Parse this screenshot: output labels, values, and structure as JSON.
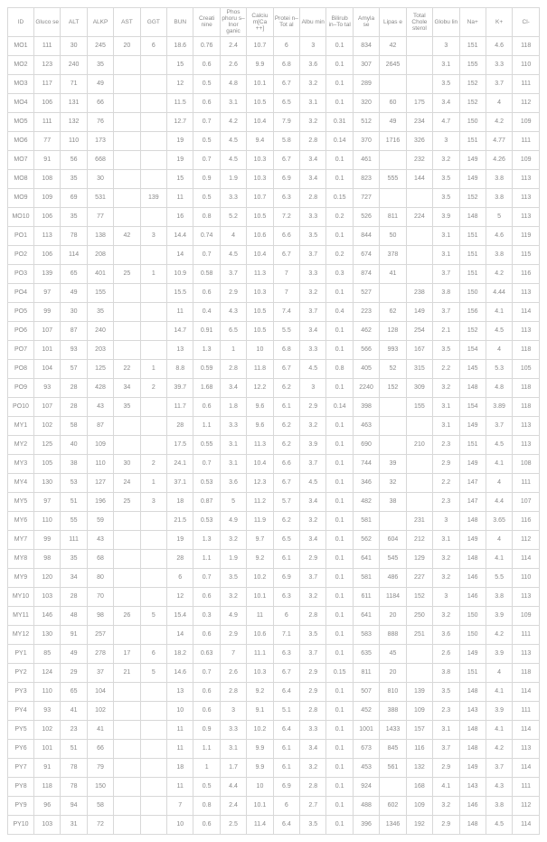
{
  "table": {
    "columns": [
      "ID",
      "Gluco\nse",
      "ALT",
      "ALKP",
      "AST",
      "GGT",
      "BUN",
      "Creati\nnine",
      "Phos\nphoru\ns–Inor\nganic",
      "Calciu\nm[Ca\n++]",
      "Protei\nn–Tot\nal",
      "Albu\nmin",
      "Bilirub\nin–To\ntal",
      "Amyla\nse",
      "Lipas\ne",
      "Total\nChole\nsterol",
      "Globu\nlin",
      "Na+",
      "K+",
      "Cl-"
    ],
    "rows": [
      [
        "MO1",
        "111",
        "30",
        "245",
        "20",
        "6",
        "18.6",
        "0.76",
        "2.4",
        "10.7",
        "6",
        "3",
        "0.1",
        "834",
        "42",
        "",
        "3",
        "151",
        "4.6",
        "118"
      ],
      [
        "MO2",
        "123",
        "240",
        "35",
        "",
        "",
        "15",
        "0.6",
        "2.6",
        "9.9",
        "6.8",
        "3.6",
        "0.1",
        "307",
        "2645",
        "",
        "3.1",
        "155",
        "3.3",
        "110"
      ],
      [
        "MO3",
        "117",
        "71",
        "49",
        "",
        "",
        "12",
        "0.5",
        "4.8",
        "10.1",
        "6.7",
        "3.2",
        "0.1",
        "289",
        "",
        "",
        "3.5",
        "152",
        "3.7",
        "111"
      ],
      [
        "MO4",
        "106",
        "131",
        "66",
        "",
        "",
        "11.5",
        "0.6",
        "3.1",
        "10.5",
        "6.5",
        "3.1",
        "0.1",
        "320",
        "60",
        "175",
        "3.4",
        "152",
        "4",
        "112"
      ],
      [
        "MO5",
        "111",
        "132",
        "76",
        "",
        "",
        "12.7",
        "0.7",
        "4.2",
        "10.4",
        "7.9",
        "3.2",
        "0.31",
        "512",
        "49",
        "234",
        "4.7",
        "150",
        "4.2",
        "109"
      ],
      [
        "MO6",
        "77",
        "110",
        "173",
        "",
        "",
        "19",
        "0.5",
        "4.5",
        "9.4",
        "5.8",
        "2.8",
        "0.14",
        "370",
        "1716",
        "326",
        "3",
        "151",
        "4.77",
        "111"
      ],
      [
        "MO7",
        "91",
        "56",
        "668",
        "",
        "",
        "19",
        "0.7",
        "4.5",
        "10.3",
        "6.7",
        "3.4",
        "0.1",
        "461",
        "",
        "232",
        "3.2",
        "149",
        "4.26",
        "109"
      ],
      [
        "MO8",
        "108",
        "35",
        "30",
        "",
        "",
        "15",
        "0.9",
        "1.9",
        "10.3",
        "6.9",
        "3.4",
        "0.1",
        "823",
        "555",
        "144",
        "3.5",
        "149",
        "3.8",
        "113"
      ],
      [
        "MO9",
        "109",
        "69",
        "531",
        "",
        "139",
        "11",
        "0.5",
        "3.3",
        "10.7",
        "6.3",
        "2.8",
        "0.15",
        "727",
        "",
        "",
        "3.5",
        "152",
        "3.8",
        "113"
      ],
      [
        "MO10",
        "106",
        "35",
        "77",
        "",
        "",
        "16",
        "0.8",
        "5.2",
        "10.5",
        "7.2",
        "3.3",
        "0.2",
        "526",
        "811",
        "224",
        "3.9",
        "148",
        "5",
        "113"
      ],
      [
        "PO1",
        "113",
        "78",
        "138",
        "42",
        "3",
        "14.4",
        "0.74",
        "4",
        "10.6",
        "6.6",
        "3.5",
        "0.1",
        "844",
        "50",
        "",
        "3.1",
        "151",
        "4.6",
        "119"
      ],
      [
        "PO2",
        "106",
        "114",
        "208",
        "",
        "",
        "14",
        "0.7",
        "4.5",
        "10.4",
        "6.7",
        "3.7",
        "0.2",
        "674",
        "378",
        "",
        "3.1",
        "151",
        "3.8",
        "115"
      ],
      [
        "PO3",
        "139",
        "65",
        "401",
        "25",
        "1",
        "10.9",
        "0.58",
        "3.7",
        "11.3",
        "7",
        "3.3",
        "0.3",
        "874",
        "41",
        "",
        "3.7",
        "151",
        "4.2",
        "116"
      ],
      [
        "PO4",
        "97",
        "49",
        "155",
        "",
        "",
        "15.5",
        "0.6",
        "2.9",
        "10.3",
        "7",
        "3.2",
        "0.1",
        "527",
        "",
        "238",
        "3.8",
        "150",
        "4.44",
        "113"
      ],
      [
        "PO5",
        "99",
        "30",
        "35",
        "",
        "",
        "11",
        "0.4",
        "4.3",
        "10.5",
        "7.4",
        "3.7",
        "0.4",
        "223",
        "62",
        "149",
        "3.7",
        "156",
        "4.1",
        "114"
      ],
      [
        "PO6",
        "107",
        "87",
        "240",
        "",
        "",
        "14.7",
        "0.91",
        "6.5",
        "10.5",
        "5.5",
        "3.4",
        "0.1",
        "462",
        "128",
        "254",
        "2.1",
        "152",
        "4.5",
        "113"
      ],
      [
        "PO7",
        "101",
        "93",
        "203",
        "",
        "",
        "13",
        "1.3",
        "1",
        "10",
        "6.8",
        "3.3",
        "0.1",
        "566",
        "993",
        "167",
        "3.5",
        "154",
        "4",
        "118"
      ],
      [
        "PO8",
        "104",
        "57",
        "125",
        "22",
        "1",
        "8.8",
        "0.59",
        "2.8",
        "11.8",
        "6.7",
        "4.5",
        "0.8",
        "405",
        "52",
        "315",
        "2.2",
        "145",
        "5.3",
        "105"
      ],
      [
        "PO9",
        "93",
        "28",
        "428",
        "34",
        "2",
        "39.7",
        "1.68",
        "3.4",
        "12.2",
        "6.2",
        "3",
        "0.1",
        "2240",
        "152",
        "309",
        "3.2",
        "148",
        "4.8",
        "118"
      ],
      [
        "PO10",
        "107",
        "28",
        "43",
        "35",
        "",
        "11.7",
        "0.6",
        "1.8",
        "9.6",
        "6.1",
        "2.9",
        "0.14",
        "398",
        "",
        "155",
        "3.1",
        "154",
        "3.89",
        "118"
      ],
      [
        "MY1",
        "102",
        "58",
        "87",
        "",
        "",
        "28",
        "1.1",
        "3.3",
        "9.6",
        "6.2",
        "3.2",
        "0.1",
        "463",
        "",
        "",
        "3.1",
        "149",
        "3.7",
        "113"
      ],
      [
        "MY2",
        "125",
        "40",
        "109",
        "",
        "",
        "17.5",
        "0.55",
        "3.1",
        "11.3",
        "6.2",
        "3.9",
        "0.1",
        "690",
        "",
        "210",
        "2.3",
        "151",
        "4.5",
        "113"
      ],
      [
        "MY3",
        "105",
        "38",
        "110",
        "30",
        "2",
        "24.1",
        "0.7",
        "3.1",
        "10.4",
        "6.6",
        "3.7",
        "0.1",
        "744",
        "39",
        "",
        "2.9",
        "149",
        "4.1",
        "108"
      ],
      [
        "MY4",
        "130",
        "53",
        "127",
        "24",
        "1",
        "37.1",
        "0.53",
        "3.6",
        "12.3",
        "6.7",
        "4.5",
        "0.1",
        "346",
        "32",
        "",
        "2.2",
        "147",
        "4",
        "111"
      ],
      [
        "MY5",
        "97",
        "51",
        "196",
        "25",
        "3",
        "18",
        "0.87",
        "5",
        "11.2",
        "5.7",
        "3.4",
        "0.1",
        "482",
        "38",
        "",
        "2.3",
        "147",
        "4.4",
        "107"
      ],
      [
        "MY6",
        "110",
        "55",
        "59",
        "",
        "",
        "21.5",
        "0.53",
        "4.9",
        "11.9",
        "6.2",
        "3.2",
        "0.1",
        "581",
        "",
        "231",
        "3",
        "148",
        "3.65",
        "116"
      ],
      [
        "MY7",
        "99",
        "111",
        "43",
        "",
        "",
        "19",
        "1.3",
        "3.2",
        "9.7",
        "6.5",
        "3.4",
        "0.1",
        "562",
        "604",
        "212",
        "3.1",
        "149",
        "4",
        "112"
      ],
      [
        "MY8",
        "98",
        "35",
        "68",
        "",
        "",
        "28",
        "1.1",
        "1.9",
        "9.2",
        "6.1",
        "2.9",
        "0.1",
        "641",
        "545",
        "129",
        "3.2",
        "148",
        "4.1",
        "114"
      ],
      [
        "MY9",
        "120",
        "34",
        "80",
        "",
        "",
        "6",
        "0.7",
        "3.5",
        "10.2",
        "6.9",
        "3.7",
        "0.1",
        "581",
        "486",
        "227",
        "3.2",
        "146",
        "5.5",
        "110"
      ],
      [
        "MY10",
        "103",
        "28",
        "70",
        "",
        "",
        "12",
        "0.6",
        "3.2",
        "10.1",
        "6.3",
        "3.2",
        "0.1",
        "611",
        "1184",
        "152",
        "3",
        "146",
        "3.8",
        "113"
      ],
      [
        "MY11",
        "146",
        "48",
        "98",
        "26",
        "5",
        "15.4",
        "0.3",
        "4.9",
        "11",
        "6",
        "2.8",
        "0.1",
        "641",
        "20",
        "250",
        "3.2",
        "150",
        "3.9",
        "109"
      ],
      [
        "MY12",
        "130",
        "91",
        "257",
        "",
        "",
        "14",
        "0.6",
        "2.9",
        "10.6",
        "7.1",
        "3.5",
        "0.1",
        "583",
        "888",
        "251",
        "3.6",
        "150",
        "4.2",
        "111"
      ],
      [
        "PY1",
        "85",
        "49",
        "278",
        "17",
        "6",
        "18.2",
        "0.63",
        "7",
        "11.1",
        "6.3",
        "3.7",
        "0.1",
        "635",
        "45",
        "",
        "2.6",
        "149",
        "3.9",
        "113"
      ],
      [
        "PY2",
        "124",
        "29",
        "37",
        "21",
        "5",
        "14.6",
        "0.7",
        "2.6",
        "10.3",
        "6.7",
        "2.9",
        "0.15",
        "811",
        "20",
        "",
        "3.8",
        "151",
        "4",
        "118"
      ],
      [
        "PY3",
        "110",
        "65",
        "104",
        "",
        "",
        "13",
        "0.6",
        "2.8",
        "9.2",
        "6.4",
        "2.9",
        "0.1",
        "507",
        "810",
        "139",
        "3.5",
        "148",
        "4.1",
        "114"
      ],
      [
        "PY4",
        "93",
        "41",
        "102",
        "",
        "",
        "10",
        "0.6",
        "3",
        "9.1",
        "5.1",
        "2.8",
        "0.1",
        "452",
        "388",
        "109",
        "2.3",
        "143",
        "3.9",
        "111"
      ],
      [
        "PY5",
        "102",
        "23",
        "41",
        "",
        "",
        "11",
        "0.9",
        "3.3",
        "10.2",
        "6.4",
        "3.3",
        "0.1",
        "1001",
        "1433",
        "157",
        "3.1",
        "148",
        "4.1",
        "114"
      ],
      [
        "PY6",
        "101",
        "51",
        "66",
        "",
        "",
        "11",
        "1.1",
        "3.1",
        "9.9",
        "6.1",
        "3.4",
        "0.1",
        "673",
        "845",
        "116",
        "3.7",
        "148",
        "4.2",
        "113"
      ],
      [
        "PY7",
        "91",
        "78",
        "79",
        "",
        "",
        "18",
        "1",
        "1.7",
        "9.9",
        "6.1",
        "3.2",
        "0.1",
        "453",
        "561",
        "132",
        "2.9",
        "149",
        "3.7",
        "114"
      ],
      [
        "PY8",
        "118",
        "78",
        "150",
        "",
        "",
        "11",
        "0.5",
        "4.4",
        "10",
        "6.9",
        "2.8",
        "0.1",
        "924",
        "",
        "168",
        "4.1",
        "143",
        "4.3",
        "111"
      ],
      [
        "PY9",
        "96",
        "94",
        "58",
        "",
        "",
        "7",
        "0.8",
        "2.4",
        "10.1",
        "6",
        "2.7",
        "0.1",
        "488",
        "602",
        "109",
        "3.2",
        "146",
        "3.8",
        "112"
      ],
      [
        "PY10",
        "103",
        "31",
        "72",
        "",
        "",
        "10",
        "0.6",
        "2.5",
        "11.4",
        "6.4",
        "3.5",
        "0.1",
        "396",
        "1346",
        "192",
        "2.9",
        "148",
        "4.5",
        "114"
      ]
    ],
    "border_color": "#d8d8d8",
    "text_color": "#888888",
    "font_size": 7,
    "background_color": "#ffffff"
  }
}
